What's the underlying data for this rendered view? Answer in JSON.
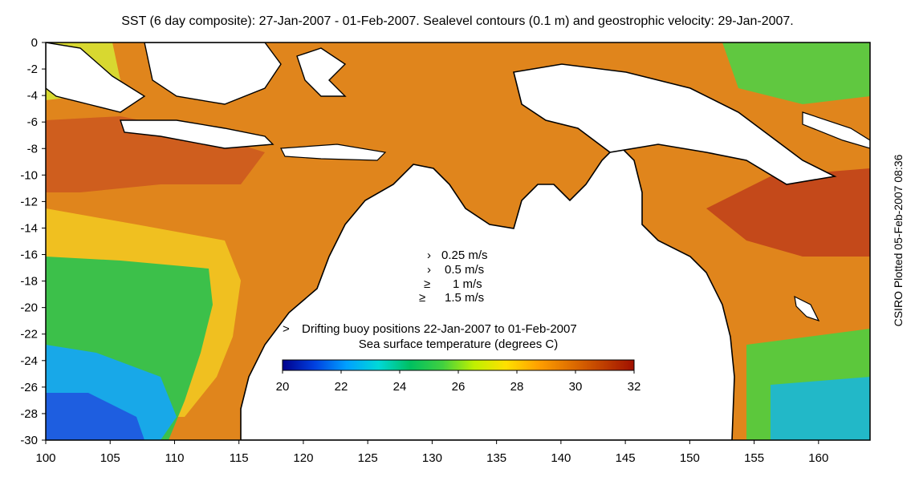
{
  "title": "SST (6 day composite): 27-Jan-2007 - 01-Feb-2007. Sealevel contours (0.1 m) and geostrophic velocity: 29-Jan-2007.",
  "sidenote": "CSIRO Plotted 05-Feb-2007 08:36",
  "axes": {
    "x_ticks": [
      "100",
      "105",
      "110",
      "115",
      "120",
      "125",
      "130",
      "135",
      "140",
      "145",
      "150",
      "155",
      "160"
    ],
    "y_ticks": [
      "0",
      "-2",
      "-4",
      "-6",
      "-8",
      "-10",
      "-12",
      "-14",
      "-16",
      "-18",
      "-20",
      "-22",
      "-24",
      "-26",
      "-28",
      "-30"
    ],
    "xlim": [
      100,
      164
    ],
    "ylim": [
      -30,
      0
    ]
  },
  "velocity_legend": [
    {
      "arrow": "›",
      "label": "0.25 m/s"
    },
    {
      "arrow": "›",
      "label": "0.5 m/s"
    },
    {
      "arrow": "≥",
      "label": "1 m/s"
    },
    {
      "arrow": "≥",
      "label": "1.5 m/s"
    }
  ],
  "buoy_legend": {
    "marker": ">",
    "label": "Drifting buoy positions 22-Jan-2007 to 01-Feb-2007",
    "color": "#e020e0"
  },
  "colorbar": {
    "title": "Sea surface temperature (degrees C)",
    "ticks": [
      "20",
      "22",
      "24",
      "26",
      "28",
      "30",
      "32"
    ],
    "colors": [
      "#00008c",
      "#0040e0",
      "#00a0ff",
      "#00d8d8",
      "#00c060",
      "#40d040",
      "#c0f000",
      "#ffe000",
      "#ffa000",
      "#e07000",
      "#c04000",
      "#a01000"
    ]
  },
  "colors": {
    "land": "#ffffff",
    "coast": "#000000",
    "warm": "#e08a1e",
    "hot": "#c8501a",
    "cool": "#3cc04a",
    "cold": "#1e6ee0"
  }
}
